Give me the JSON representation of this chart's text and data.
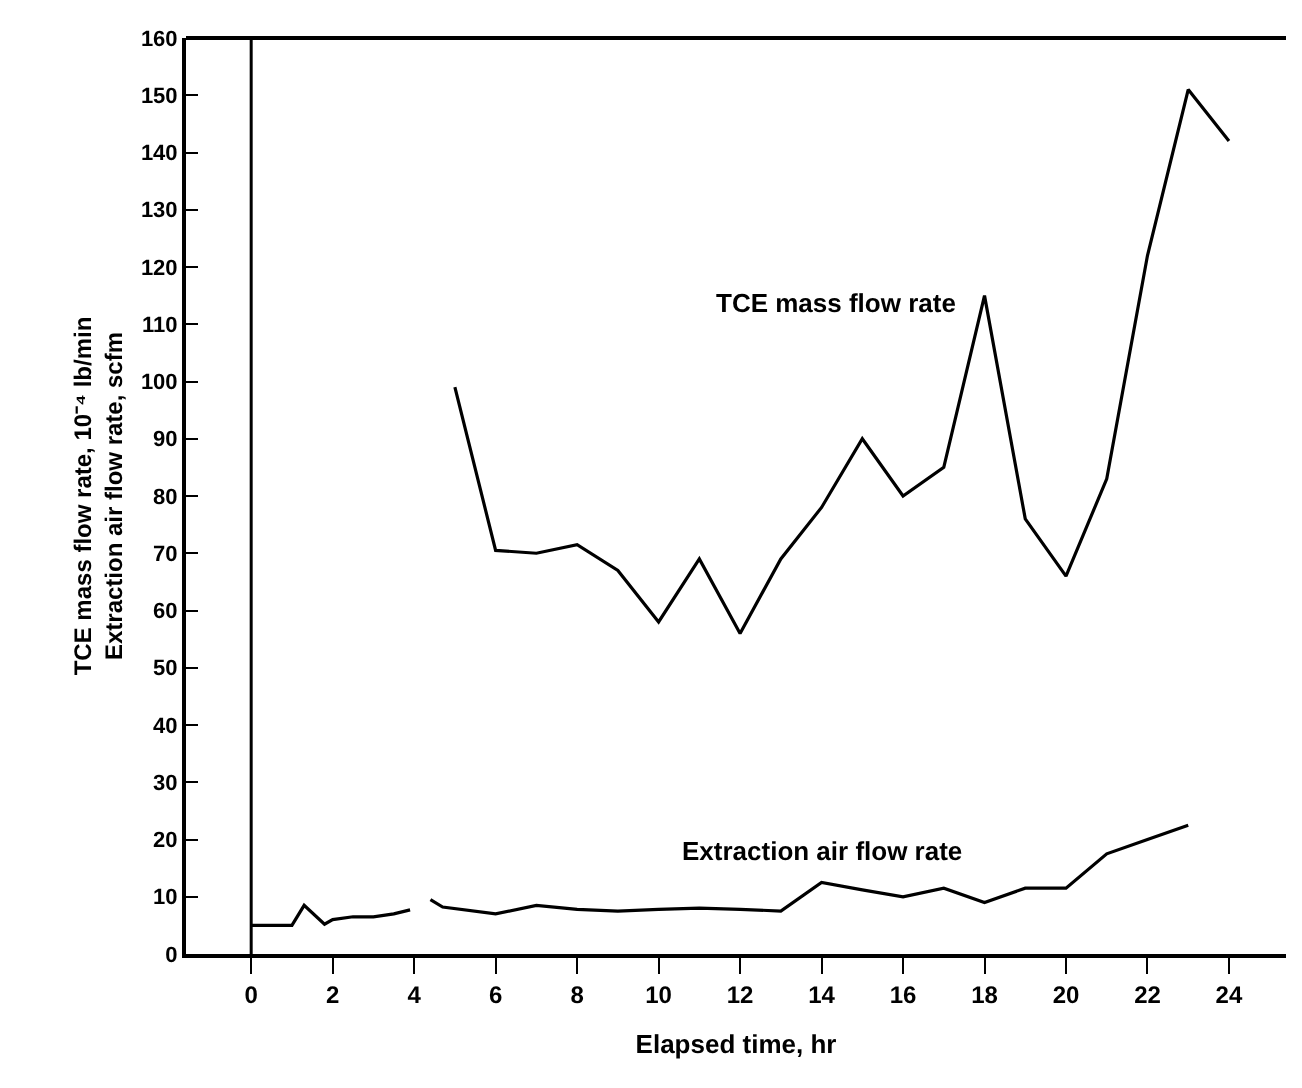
{
  "chart_data": {
    "type": "line",
    "xlabel": "Elapsed time, hr",
    "ylabel": "TCE mass flow rate, 10⁻⁴ lb/min\nExtraction air flow rate, scfm",
    "xlim": [
      -1.6,
      25.4
    ],
    "xticks": [
      0,
      2,
      4,
      6,
      8,
      10,
      12,
      14,
      16,
      18,
      20,
      22,
      24
    ],
    "ylim": [
      0,
      160
    ],
    "yticks": [
      0,
      10,
      20,
      30,
      40,
      50,
      60,
      70,
      80,
      90,
      100,
      110,
      120,
      130,
      140,
      150,
      160
    ],
    "grid": false,
    "legend": false,
    "marker": "none",
    "line_style": "solid",
    "ref_lines": [
      {
        "axis": "x",
        "value": 0,
        "color": "#000000"
      }
    ],
    "series": [
      {
        "name": "TCE mass flow rate",
        "color": "#000000",
        "x": [
          5,
          6,
          7,
          8,
          9,
          10,
          11,
          12,
          13,
          14,
          15,
          16,
          17,
          18,
          19,
          20,
          21,
          22,
          23,
          24
        ],
        "values": [
          99,
          70.5,
          70,
          71.5,
          67,
          58,
          69,
          56,
          69,
          78,
          90,
          80,
          85,
          115,
          76,
          66,
          83,
          122,
          151,
          142
        ]
      },
      {
        "name": "Extraction air flow rate",
        "color": "#000000",
        "x": [
          0,
          1,
          1.3,
          1.8,
          2,
          2.5,
          3,
          3.5,
          3.9,
          4.1,
          4.4,
          4.7,
          6,
          7,
          8,
          9,
          10,
          11,
          12,
          13,
          14,
          15,
          16,
          17,
          18,
          19,
          20,
          21,
          22,
          23
        ],
        "values": [
          5,
          5,
          8.5,
          5.2,
          6,
          6.5,
          6.5,
          7,
          7.7,
          null,
          9.5,
          8.2,
          7,
          8.5,
          7.8,
          7.5,
          7.8,
          8,
          7.8,
          7.5,
          12.5,
          11.2,
          10,
          11.5,
          9,
          11.5,
          11.5,
          17.5,
          20,
          22.5
        ]
      }
    ]
  }
}
